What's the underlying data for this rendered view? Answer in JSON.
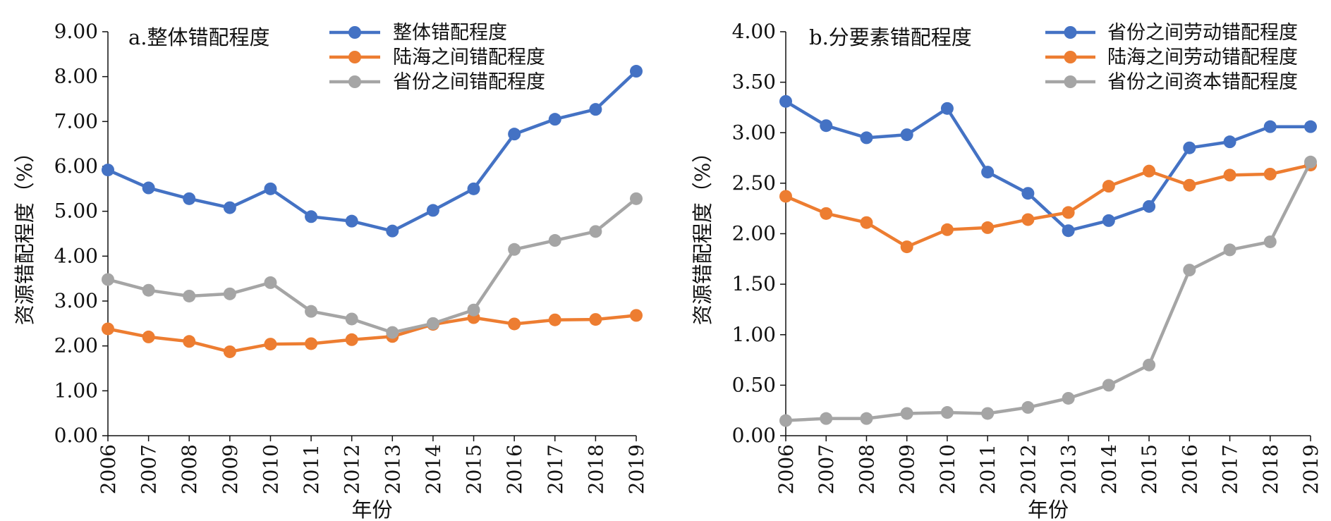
{
  "chart_data": [
    {
      "type": "line",
      "title": "a.整体错配程度",
      "xlabel": "年份",
      "ylabel": "资源错配程度（%）",
      "ylim": [
        0,
        9
      ],
      "y_ticks": [
        "0.00",
        "1.00",
        "2.00",
        "3.00",
        "4.00",
        "5.00",
        "6.00",
        "7.00",
        "8.00",
        "9.00"
      ],
      "categories": [
        "2006",
        "2007",
        "2008",
        "2009",
        "2010",
        "2011",
        "2012",
        "2013",
        "2014",
        "2015",
        "2016",
        "2017",
        "2018",
        "2019"
      ],
      "grid": false,
      "legend_position": "top-right",
      "series": [
        {
          "name": "整体错配程度",
          "color": "#4472C4",
          "values": [
            5.92,
            5.52,
            5.28,
            5.08,
            5.5,
            4.88,
            4.78,
            4.56,
            5.02,
            5.5,
            6.72,
            7.05,
            7.27,
            8.12
          ]
        },
        {
          "name": "陆海之间错配程度",
          "color": "#ED7D31",
          "values": [
            2.38,
            2.2,
            2.1,
            1.87,
            2.04,
            2.05,
            2.14,
            2.21,
            2.48,
            2.63,
            2.49,
            2.58,
            2.59,
            2.68
          ]
        },
        {
          "name": "省份之间错配程度",
          "color": "#A5A5A5",
          "values": [
            3.48,
            3.24,
            3.11,
            3.16,
            3.41,
            2.77,
            2.6,
            2.3,
            2.5,
            2.8,
            4.15,
            4.35,
            4.55,
            5.28
          ]
        }
      ]
    },
    {
      "type": "line",
      "title": "b.分要素错配程度",
      "xlabel": "年份",
      "ylabel": "资源错配程度（%）",
      "ylim": [
        0,
        4
      ],
      "y_ticks": [
        "0.00",
        "0.50",
        "1.00",
        "1.50",
        "2.00",
        "2.50",
        "3.00",
        "3.50",
        "4.00"
      ],
      "categories": [
        "2006",
        "2007",
        "2008",
        "2009",
        "2010",
        "2011",
        "2012",
        "2013",
        "2014",
        "2015",
        "2016",
        "2017",
        "2018",
        "2019"
      ],
      "grid": false,
      "legend_position": "top-right",
      "series": [
        {
          "name": "省份之间劳动错配程度",
          "color": "#4472C4",
          "values": [
            3.31,
            3.07,
            2.95,
            2.98,
            3.24,
            2.61,
            2.4,
            2.03,
            2.13,
            2.27,
            2.85,
            2.91,
            3.06,
            3.06
          ]
        },
        {
          "name": "陆海之间劳动错配程度",
          "color": "#ED7D31",
          "values": [
            2.37,
            2.2,
            2.11,
            1.87,
            2.04,
            2.06,
            2.14,
            2.21,
            2.47,
            2.62,
            2.48,
            2.58,
            2.59,
            2.68
          ]
        },
        {
          "name": "省份之间资本错配程度",
          "color": "#A5A5A5",
          "values": [
            0.15,
            0.17,
            0.17,
            0.22,
            0.23,
            0.22,
            0.28,
            0.37,
            0.5,
            0.7,
            1.64,
            1.84,
            1.92,
            2.71
          ]
        }
      ]
    }
  ]
}
